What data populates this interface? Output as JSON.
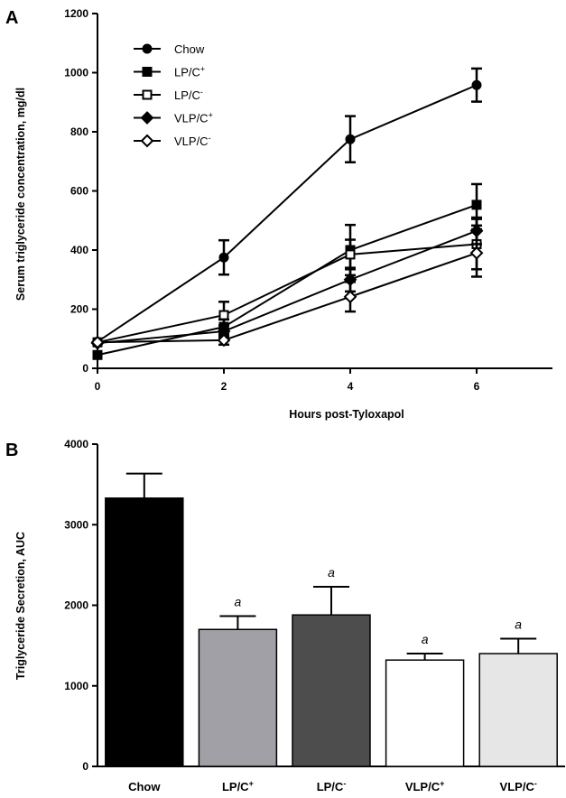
{
  "panels": {
    "a_label": "A",
    "b_label": "B"
  },
  "chart_data": [
    {
      "type": "line",
      "panel": "A",
      "xlabel": "Hours post-Tyloxapol",
      "ylabel": "Serum triglyceride concentration, mg/dl",
      "x": [
        0,
        2,
        4,
        6
      ],
      "xlim": [
        0,
        7.2
      ],
      "ylim": [
        0,
        1200
      ],
      "xticks": [
        0,
        2,
        4,
        6
      ],
      "yticks": [
        0,
        200,
        400,
        600,
        800,
        1000,
        1200
      ],
      "grid": false,
      "legend_position": "top-left",
      "series": [
        {
          "name": "Chow",
          "name_base": "Chow",
          "name_sup": "",
          "marker": "circle-filled",
          "values": [
            90,
            375,
            775,
            958
          ],
          "errors": [
            10,
            58,
            78,
            56
          ]
        },
        {
          "name": "LP/C+",
          "name_base": "LP/C",
          "name_sup": "+",
          "marker": "square-filled",
          "values": [
            45,
            140,
            400,
            553
          ],
          "errors": [
            8,
            25,
            85,
            70
          ]
        },
        {
          "name": "LP/C-",
          "name_base": "LP/C",
          "name_sup": "-",
          "marker": "square-open",
          "values": [
            88,
            180,
            385,
            420
          ],
          "errors": [
            10,
            45,
            50,
            85
          ]
        },
        {
          "name": "VLP/C+",
          "name_base": "VLP/C",
          "name_sup": "+",
          "marker": "diamond-filled",
          "values": [
            85,
            125,
            300,
            465
          ],
          "errors": [
            10,
            20,
            40,
            45
          ]
        },
        {
          "name": "VLP/C-",
          "name_base": "VLP/C",
          "name_sup": "-",
          "marker": "diamond-open",
          "values": [
            88,
            95,
            242,
            390
          ],
          "errors": [
            10,
            15,
            50,
            80
          ]
        }
      ]
    },
    {
      "type": "bar",
      "panel": "B",
      "xlabel": "",
      "ylabel": "Triglyceride Secretion, AUC",
      "ylim": [
        0,
        4000
      ],
      "yticks": [
        0,
        1000,
        2000,
        3000,
        4000
      ],
      "grid": false,
      "categories": [
        "Chow",
        "LP/C+",
        "LP/C-",
        "VLP/C+",
        "VLP/C-"
      ],
      "category_base": [
        "Chow",
        "LP/C",
        "LP/C",
        "VLP/C",
        "VLP/C"
      ],
      "category_sup": [
        "",
        "+",
        "-",
        "+",
        "-"
      ],
      "values": [
        3330,
        1700,
        1880,
        1320,
        1400
      ],
      "errors": [
        305,
        165,
        350,
        80,
        185
      ],
      "significance": [
        "",
        "a",
        "a",
        "a",
        "a"
      ],
      "colors": [
        "#000000",
        "#a0a0a6",
        "#4d4d4d",
        "#ffffff",
        "#e6e6e6"
      ]
    }
  ]
}
